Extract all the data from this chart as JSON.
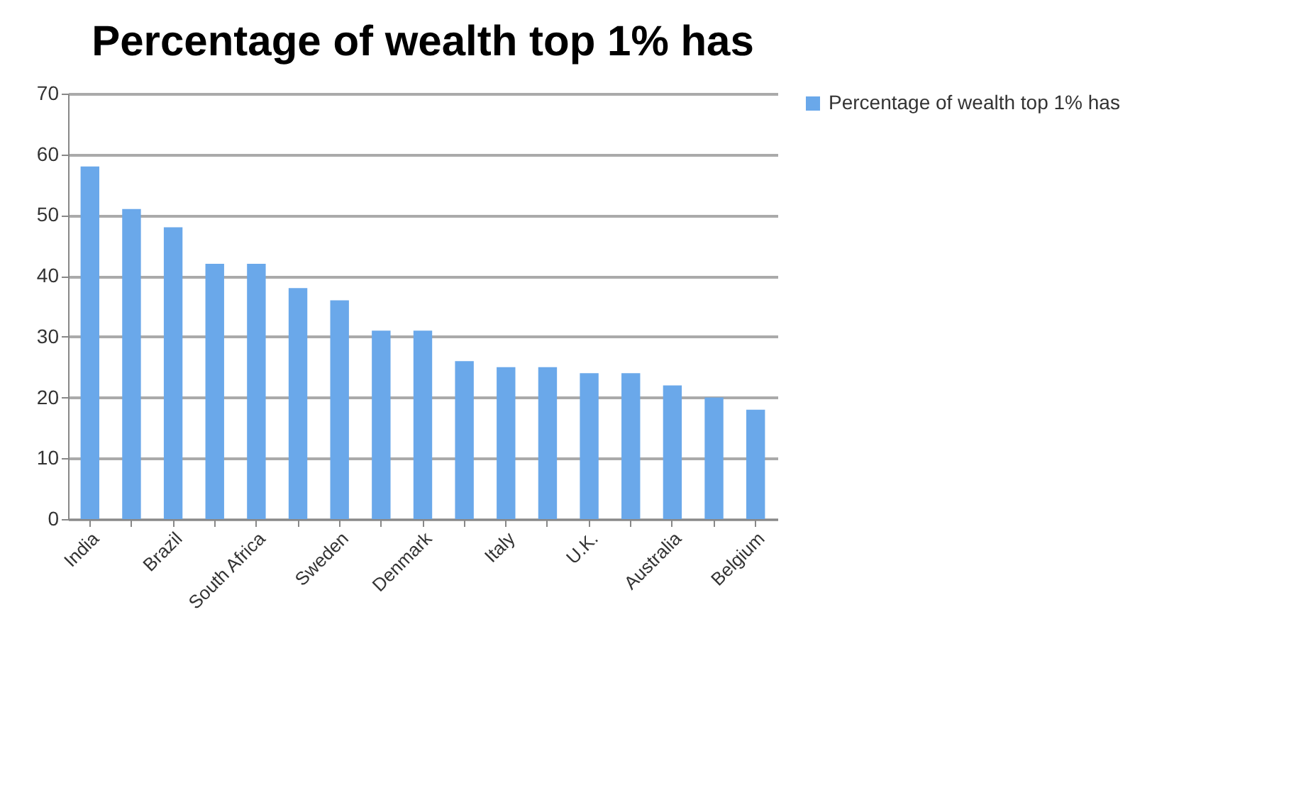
{
  "chart_data": {
    "type": "bar",
    "title": "Percentage of wealth top 1% has",
    "categories": [
      "India",
      null,
      "Brazil",
      null,
      "South Africa",
      null,
      "Sweden",
      null,
      "Denmark",
      null,
      "Italy",
      null,
      "U.K.",
      null,
      "Australia",
      null,
      "Belgium"
    ],
    "series": [
      {
        "name": "Percentage of wealth top 1% has",
        "color": "#6aa8ea",
        "values": [
          58,
          51,
          48,
          42,
          42,
          38,
          36,
          31,
          31,
          26,
          25,
          25,
          24,
          24,
          22,
          20,
          18
        ]
      }
    ],
    "ylim": [
      0,
      70
    ],
    "yticks": [
      0,
      10,
      20,
      30,
      40,
      50,
      60,
      70
    ],
    "grid": "y",
    "legend": "right"
  }
}
